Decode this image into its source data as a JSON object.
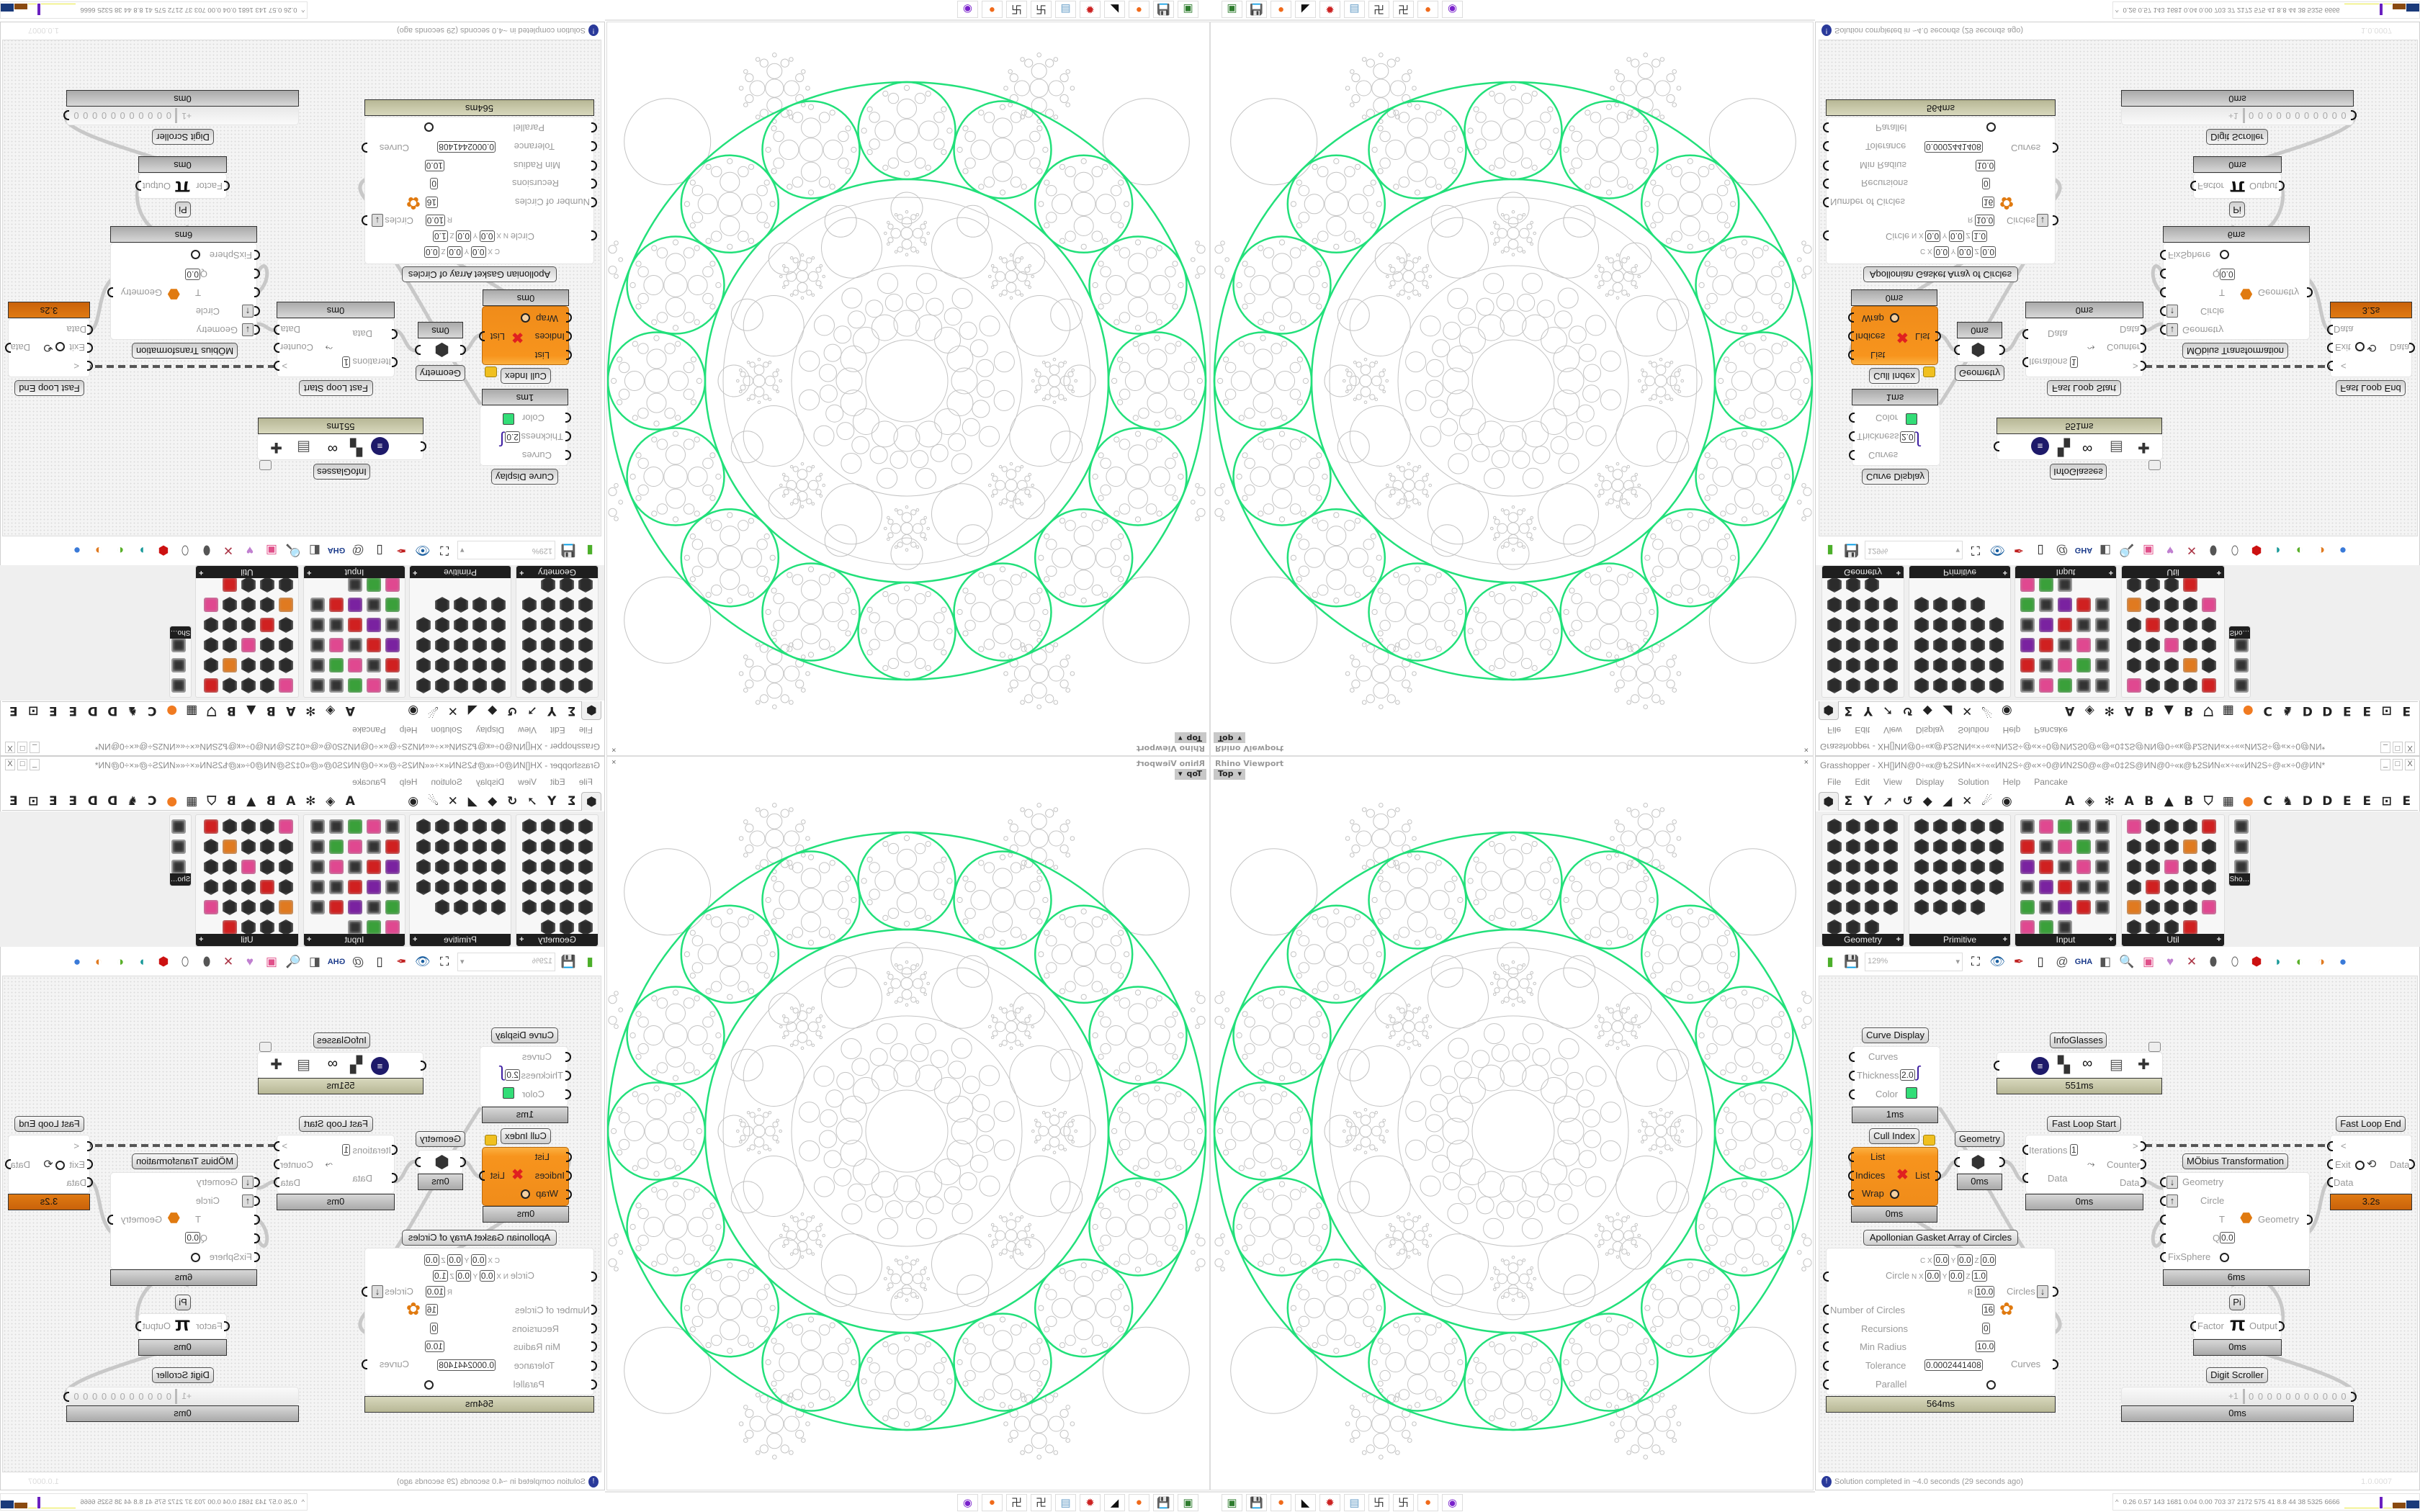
{
  "viewport": {
    "title": "Rhino Viewport",
    "view": "Top",
    "close": "×"
  },
  "taskbar_icons": [
    {
      "name": "monitor-icon",
      "glyph": "▣",
      "color": "#2f7d2f"
    },
    {
      "name": "floppy-64-icon",
      "glyph": "💾",
      "color": "#2233aa"
    },
    {
      "name": "firefox-icon",
      "glyph": "●",
      "color": "#f06a1a"
    },
    {
      "name": "rhino-icon",
      "glyph": "◣",
      "color": "#111111"
    },
    {
      "name": "red-gear-icon",
      "glyph": "✹",
      "color": "#cc2222"
    },
    {
      "name": "notepad-icon",
      "glyph": "▤",
      "color": "#6aa0c8"
    },
    {
      "name": "maze-icon",
      "glyph": "卐",
      "color": "#333333"
    },
    {
      "name": "maze-icon",
      "glyph": "卐",
      "color": "#333333"
    },
    {
      "name": "firefox-icon",
      "glyph": "●",
      "color": "#f06a1a"
    },
    {
      "name": "purple-chat-icon",
      "glyph": "◉",
      "color": "#7a22cc"
    }
  ],
  "grasshopper": {
    "title": "Grasshopper - XH[]ИN@0÷«к@ѣ2SИN«×÷««ИN2S÷@«×÷0@ИN2S0@«@«0‡2S@ИN@0÷«к@ѣ2SИN«×÷««ИN2S÷@«×÷0@ИN*",
    "window_buttons": [
      "_",
      "□",
      "X"
    ],
    "menu": [
      "File",
      "Edit",
      "View",
      "Display",
      "Solution",
      "Help",
      "Pancake"
    ],
    "tabs": [
      "⬢",
      "Σ",
      "Y",
      "➚",
      "↺",
      "◆",
      "◢",
      "✕",
      "☄",
      "◉",
      "A",
      "◈",
      "✻",
      "A",
      "B",
      "▲",
      "B",
      "⛉",
      "▦",
      "●",
      "C",
      "♞",
      "D",
      "D",
      "E",
      "E",
      "⊡",
      "E"
    ],
    "panels": [
      {
        "label": "Geometry",
        "icon_count": 23,
        "style": "hex"
      },
      {
        "label": "Primitive",
        "icon_count": 24,
        "style": "hex"
      },
      {
        "label": "Input",
        "icon_count": 28,
        "style": "mixed"
      },
      {
        "label": "Util",
        "icon_count": 29,
        "style": "util"
      },
      {
        "label": "Sho…",
        "icon_count": 3,
        "style": "show"
      }
    ],
    "panel_expand": "+",
    "zoom": "129%",
    "toolbar_icons": [
      {
        "name": "new-file-icon",
        "glyph": "▮",
        "color": "#4caf2a"
      },
      {
        "name": "save-icon",
        "glyph": "💾",
        "color": "#2244aa"
      },
      {
        "name": "zoom-extents-icon",
        "glyph": "⛶",
        "color": "#111"
      },
      {
        "name": "preview-eye-icon",
        "glyph": "👁",
        "color": "#1a5fa0"
      },
      {
        "name": "sketch-pen-icon",
        "glyph": "✒",
        "color": "#c02020"
      },
      {
        "name": "bake-icon",
        "glyph": "▯",
        "color": "#222"
      },
      {
        "name": "at-icon",
        "glyph": "@",
        "color": "#555"
      },
      {
        "name": "gha-icon",
        "glyph": "GHA",
        "color": "#1a3a8a"
      },
      {
        "name": "window-icon",
        "glyph": "◧",
        "color": "#555"
      },
      {
        "name": "search-icon",
        "glyph": "🔍",
        "color": "#333"
      },
      {
        "name": "package-icon",
        "glyph": "▣",
        "color": "#e0508a"
      },
      {
        "name": "balloon-icon",
        "glyph": "♥",
        "color": "#c080d0"
      },
      {
        "name": "dna-icon",
        "glyph": "✕",
        "color": "#aa3344"
      },
      {
        "name": "gray-shape-icon",
        "glyph": "⬮",
        "color": "#555"
      },
      {
        "name": "wire-shape-icon",
        "glyph": "⬯",
        "color": "#555"
      },
      {
        "name": "red-shape-icon",
        "glyph": "⬢",
        "color": "#cc1111"
      },
      {
        "name": "teal-shape-icon",
        "glyph": "◗",
        "color": "#1a9a9a"
      },
      {
        "name": "green-shape-icon",
        "glyph": "◐",
        "color": "#5ab02a"
      },
      {
        "name": "orange-sphere-icon",
        "glyph": "◑",
        "color": "#e07a20"
      },
      {
        "name": "blue-sphere-icon",
        "glyph": "●",
        "color": "#3a7ad8"
      }
    ],
    "status": "Solution completed in ~4.0 seconds (29 seconds ago)",
    "version": "1.0.0007"
  },
  "components": {
    "curve_display": {
      "label": "Curve Display",
      "inputs": [
        "Curves",
        "Thickness",
        "Color"
      ],
      "thickness": "2.0",
      "color": "#33dd77",
      "time": "1ms"
    },
    "infoglasses": {
      "label": "InfoGlasses",
      "time": "551ms"
    },
    "cull_index": {
      "label": "Cull Index",
      "inputs": [
        "List",
        "Indices",
        "Wrap"
      ],
      "output": "List",
      "time": "0ms"
    },
    "geometry": {
      "label": "Geometry",
      "time": "0ms"
    },
    "fast_loop_start": {
      "label": "Fast Loop Start",
      "iterations_label": "Iterations",
      "iterations": "1",
      "inputs": [
        "Data"
      ],
      "outputs": [
        ">",
        "Counter",
        "Data"
      ],
      "time": "0ms"
    },
    "fast_loop_end": {
      "label": "Fast Loop End",
      "inputs": [
        "<",
        "Exit",
        "Data"
      ],
      "output": "Data",
      "time": "3.2s"
    },
    "mobius": {
      "label": "MÖbius Transformation",
      "inputs": [
        "Geometry",
        "Circle",
        "T",
        "Q",
        "FixSphere"
      ],
      "q": "0.0",
      "output": "Geometry",
      "time": "6ms"
    },
    "apollonian": {
      "label": "Apollonian Gasket Array of Circles",
      "c": {
        "x": "0.0",
        "y": "0.0",
        "z": "0.0"
      },
      "circle_label": "Circle",
      "n": {
        "x": "0.0",
        "y": "0.0",
        "z": "1.0"
      },
      "r": "10.0",
      "inputs": [
        "Number of Circles",
        "Recursions",
        "Min Radius",
        "Tolerance",
        "Parallel"
      ],
      "number_of_circles": "16",
      "recursions": "0",
      "min_radius": "10.0",
      "tolerance": "0.0002441408",
      "outputs": [
        "Circles",
        "Curves"
      ],
      "time": "564ms"
    },
    "pi": {
      "label": "Pi",
      "input": "Factor",
      "symbol": "π",
      "output": "Output",
      "time": "0ms"
    },
    "digit_scroller": {
      "label": "Digit Scroller",
      "sign": "+1",
      "digits": "0 0 0 0 0 0 0 0 0 0 0",
      "time": "0ms"
    }
  },
  "stats": {
    "caret": "^",
    "values": "0.26 0.57 143 1681 0.04 0.00 703 37 2172 575 41 8.8 44 38 5325 6666"
  },
  "colors": {
    "accent_green": "#22e07a",
    "pattern_gray": "#c4c4c4",
    "orange_component": "#f7941d",
    "loop_time_bar": "#d06a10"
  }
}
